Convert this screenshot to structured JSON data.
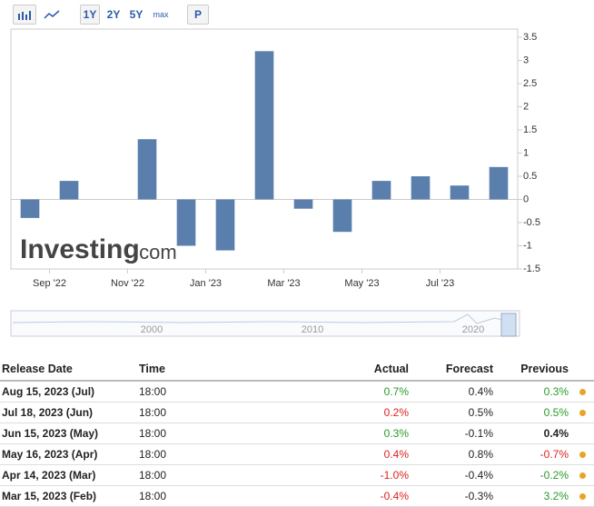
{
  "toolbar": {
    "ranges": [
      "1Y",
      "2Y",
      "5Y",
      "max"
    ],
    "print": "P"
  },
  "chart_data": {
    "type": "bar",
    "categories": [
      "Sep '22",
      null,
      "Nov '22",
      null,
      "Jan '23",
      null,
      "Mar '23",
      null,
      "May '23",
      null,
      "Jul '23",
      null,
      null
    ],
    "values": [
      -0.4,
      0.4,
      null,
      1.3,
      -1.0,
      -1.1,
      3.2,
      -0.2,
      -0.7,
      0.4,
      0.5,
      0.3,
      0.7
    ],
    "color": "#5b7fad",
    "ylim": [
      -1.5,
      3.5
    ],
    "yticks": [
      -1.5,
      -1,
      -0.5,
      0,
      0.5,
      1,
      1.5,
      2,
      2.5,
      3,
      3.5
    ],
    "watermark": {
      "brand": "Investing",
      "suffix": ".com"
    },
    "navigator_labels": [
      "2000",
      "2010",
      "2020"
    ]
  },
  "table": {
    "header": [
      "Release Date",
      "Time",
      "Actual",
      "Forecast",
      "Previous"
    ],
    "rows": [
      [
        "Aug 15, 2023 (Jul)",
        "18:00",
        "0.7%",
        "0.4%",
        "0.3%"
      ],
      [
        "Jul 18, 2023 (Jun)",
        "18:00",
        "0.2%",
        "0.5%",
        "0.5%"
      ],
      [
        "Jun 15, 2023 (May)",
        "18:00",
        "0.3%",
        "-0.1%",
        "0.4%"
      ],
      [
        "May 16, 2023 (Apr)",
        "18:00",
        "0.4%",
        "0.8%",
        "-0.7%"
      ],
      [
        "Apr 14, 2023 (Mar)",
        "18:00",
        "-1.0%",
        "-0.4%",
        "-0.2%"
      ],
      [
        "Mar 15, 2023 (Feb)",
        "18:00",
        "-0.4%",
        "-0.3%",
        "3.2%"
      ]
    ]
  }
}
